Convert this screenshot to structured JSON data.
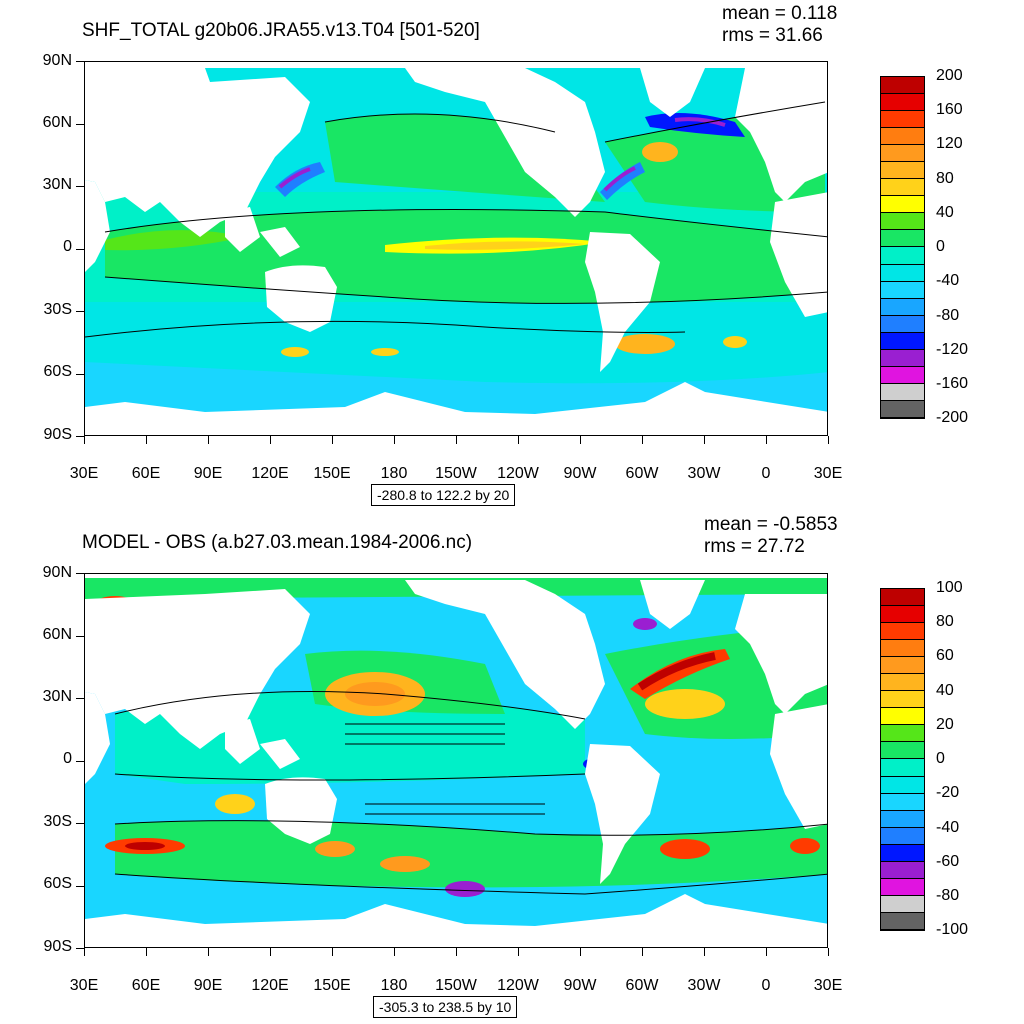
{
  "colors": {
    "land": "#ffffff",
    "frame": "#000000",
    "scale_top": [
      "#636363",
      "#cfcfcf",
      "#e014e0",
      "#9a1fd1",
      "#0017ff",
      "#1f7fff",
      "#19a6ff",
      "#19d6ff",
      "#00e6e6",
      "#00f0c8",
      "#19e664",
      "#55e619",
      "#ffff00",
      "#ffd21a",
      "#ffb41e",
      "#ff9a1e",
      "#ff7d10",
      "#ff3b00",
      "#e60000",
      "#be0000"
    ],
    "scale_bottom": [
      "#636363",
      "#cfcfcf",
      "#e014e0",
      "#9a1fd1",
      "#0017ff",
      "#1f7fff",
      "#19a6ff",
      "#19d6ff",
      "#00e6e6",
      "#00f0c8",
      "#19e664",
      "#55e619",
      "#ffff00",
      "#ffd21a",
      "#ffb41e",
      "#ff9a1e",
      "#ff7d10",
      "#ff3b00",
      "#e60000",
      "#be0000"
    ]
  },
  "top": {
    "title": "SHF_TOTAL g20b06.JRA55.v13.T04 [501-520]",
    "mean": "mean = 0.118",
    "rms": "rms = 31.66",
    "range": "-280.8 to 122.2 by 20",
    "lat_labels": [
      "90N",
      "60N",
      "30N",
      "0",
      "30S",
      "60S",
      "90S"
    ],
    "lon_labels": [
      "30E",
      "60E",
      "90E",
      "120E",
      "150E",
      "180",
      "150W",
      "120W",
      "90W",
      "60W",
      "30W",
      "0",
      "30E"
    ],
    "colorbar_labels": [
      "200",
      "160",
      "120",
      "80",
      "40",
      "0",
      "-40",
      "-80",
      "-120",
      "-160",
      "-200"
    ]
  },
  "bottom": {
    "title": "MODEL - OBS (a.b27.03.mean.1984-2006.nc)",
    "mean": "mean = -0.5853",
    "rms": "rms = 27.72",
    "range": "-305.3 to 238.5 by 10",
    "lat_labels": [
      "90N",
      "60N",
      "30N",
      "0",
      "30S",
      "60S",
      "90S"
    ],
    "lon_labels": [
      "30E",
      "60E",
      "90E",
      "120E",
      "150E",
      "180",
      "150W",
      "120W",
      "90W",
      "60W",
      "30W",
      "0",
      "30E"
    ],
    "colorbar_labels": [
      "100",
      "80",
      "60",
      "40",
      "20",
      "0",
      "-20",
      "-40",
      "-60",
      "-80",
      "-100"
    ]
  }
}
